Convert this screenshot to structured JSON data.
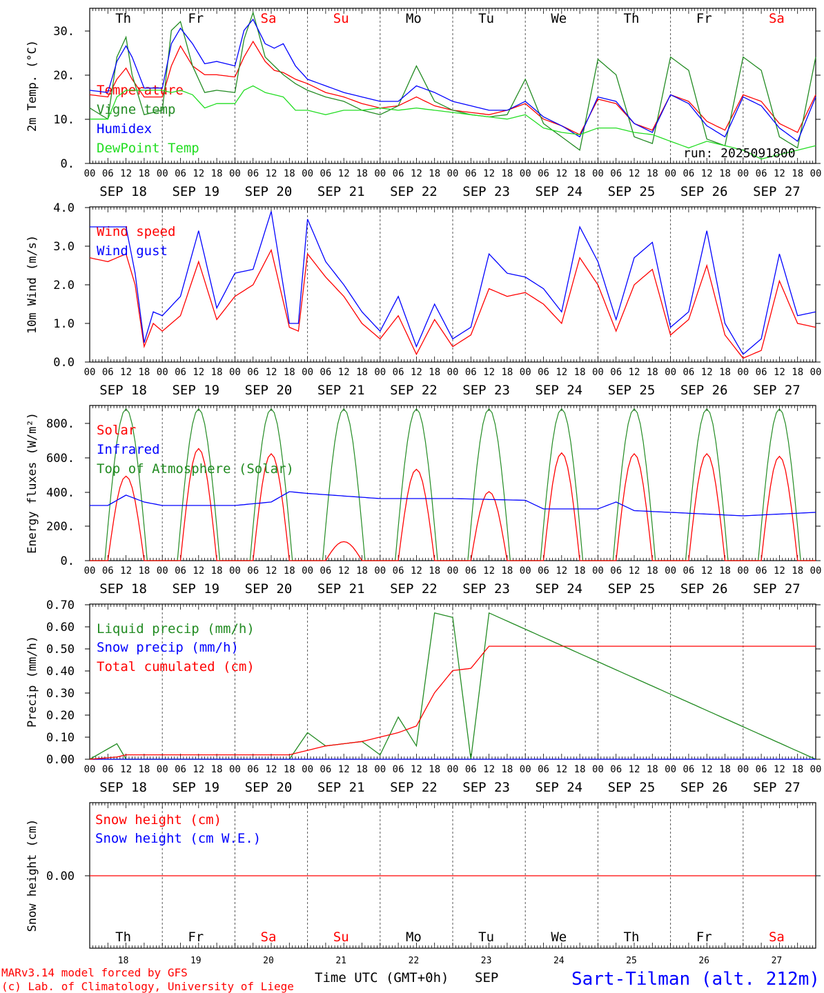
{
  "colors": {
    "red": "#ff0000",
    "green": "#228b22",
    "lightgreen": "#22dd22",
    "blue": "#0000ff",
    "axis": "#000000",
    "grid": "#555555"
  },
  "days": [
    {
      "abbr": "Th",
      "date": "SEP 18",
      "num": "18",
      "weekend": false
    },
    {
      "abbr": "Fr",
      "date": "SEP 19",
      "num": "19",
      "weekend": false
    },
    {
      "abbr": "Sa",
      "date": "SEP 20",
      "num": "20",
      "weekend": true
    },
    {
      "abbr": "Su",
      "date": "SEP 21",
      "num": "21",
      "weekend": true
    },
    {
      "abbr": "Mo",
      "date": "SEP 22",
      "num": "22",
      "weekend": false
    },
    {
      "abbr": "Tu",
      "date": "SEP 23",
      "num": "23",
      "weekend": false
    },
    {
      "abbr": "We",
      "date": "SEP 24",
      "num": "24",
      "weekend": false
    },
    {
      "abbr": "Th",
      "date": "SEP 25",
      "num": "25",
      "weekend": false
    },
    {
      "abbr": "Fr",
      "date": "SEP 26",
      "num": "26",
      "weekend": false
    },
    {
      "abbr": "Sa",
      "date": "SEP 27",
      "num": "27",
      "weekend": true
    }
  ],
  "hour_labels": [
    "00",
    "06",
    "12",
    "18"
  ],
  "hour_label_end": "00",
  "footer": {
    "credit_line1": "MARv3.14 model forced by GFS",
    "credit_line2": "(c) Lab. of Climatology, University of Liege",
    "xlabel": "Time UTC (GMT+0h)",
    "month": "SEP",
    "station": "Sart-Tilman (alt. 212m)"
  },
  "chart_data": [
    {
      "type": "line",
      "ylabel": "2m Temp. (°C)",
      "ylim": [
        0,
        35
      ],
      "yticks": [
        "0.",
        "10.",
        "20.",
        "30."
      ],
      "annotation": "run: 2025091800",
      "x_hours": [
        0,
        6,
        9,
        12,
        14,
        18,
        24,
        27,
        30,
        34,
        38,
        42,
        48,
        51,
        54,
        58,
        61,
        64,
        68,
        72,
        78,
        84,
        90,
        96,
        102,
        108,
        114,
        120,
        126,
        132,
        138,
        144,
        150,
        156,
        162,
        168,
        174,
        180,
        186,
        192,
        198,
        204,
        210,
        216,
        222,
        228,
        234,
        240
      ],
      "series": [
        {
          "name": "Temperature",
          "color": "#ff0000",
          "values": [
            15.5,
            15,
            19,
            21.5,
            19,
            15,
            15,
            22,
            26.5,
            22,
            20,
            20,
            19.5,
            24,
            27.5,
            23,
            21,
            20.5,
            19,
            18,
            16,
            15,
            13.5,
            12.5,
            13,
            15,
            13,
            12,
            11.5,
            11,
            12,
            13.5,
            10,
            8.5,
            6.5,
            14.5,
            13.5,
            9,
            7.5,
            15.5,
            14,
            9.5,
            7.5,
            15.5,
            14,
            9,
            7,
            15.5
          ]
        },
        {
          "name": "Vigne temp",
          "color": "#228b22",
          "values": [
            12.5,
            10,
            24,
            28.5,
            20,
            11,
            12,
            30,
            32,
            22,
            16,
            16.5,
            16,
            28,
            34,
            24,
            22,
            20,
            18,
            16.5,
            15,
            14,
            12,
            11,
            13,
            22,
            14,
            12,
            11,
            10.5,
            11,
            19,
            9,
            6,
            3,
            23.5,
            20,
            6,
            4.5,
            24,
            21,
            5.5,
            4,
            24,
            21,
            6,
            3.5,
            24
          ]
        },
        {
          "name": "Humidex",
          "color": "#0000ff",
          "values": [
            16.5,
            16,
            23,
            26.5,
            24,
            17,
            17,
            27,
            30.5,
            27,
            22.5,
            23,
            22,
            30,
            32.5,
            27,
            26,
            27,
            22,
            19,
            17.5,
            16,
            15,
            14,
            14,
            17.5,
            16,
            14,
            13,
            12,
            12,
            14,
            10.5,
            8.5,
            6,
            15,
            14,
            9,
            7,
            15.5,
            13.5,
            8.5,
            6,
            15,
            13,
            8,
            5,
            15
          ]
        },
        {
          "name": "DewPoint Temp",
          "color": "#22dd22",
          "values": [
            10,
            10,
            15,
            16.5,
            16.5,
            16.5,
            16.5,
            16,
            16.5,
            15.5,
            12.5,
            13.5,
            13.5,
            16.5,
            17.5,
            16,
            15.5,
            15,
            12,
            12,
            11,
            12,
            12,
            12.5,
            12,
            12.5,
            12,
            11.5,
            11,
            10.5,
            10,
            11,
            8,
            7,
            6.5,
            8,
            8,
            7,
            6.5,
            5,
            3.5,
            5,
            4,
            3,
            1,
            2,
            3,
            4
          ]
        }
      ]
    },
    {
      "type": "line",
      "ylabel": "10m Wind (m/s)",
      "ylim": [
        0,
        4
      ],
      "yticks": [
        "0.0",
        "1.0",
        "2.0",
        "3.0",
        "4.0"
      ],
      "x_hours": [
        0,
        6,
        12,
        15,
        18,
        21,
        24,
        30,
        36,
        42,
        48,
        54,
        60,
        66,
        69,
        72,
        78,
        84,
        90,
        96,
        102,
        108,
        114,
        120,
        126,
        132,
        138,
        144,
        150,
        156,
        162,
        168,
        174,
        180,
        186,
        192,
        198,
        204,
        210,
        216,
        222,
        228,
        234,
        240
      ],
      "series": [
        {
          "name": "Wind speed",
          "color": "#ff0000",
          "values": [
            2.7,
            2.6,
            2.8,
            2.0,
            0.4,
            1.0,
            0.8,
            1.2,
            2.6,
            1.1,
            1.7,
            2.0,
            2.9,
            0.9,
            0.8,
            2.8,
            2.2,
            1.7,
            1.0,
            0.6,
            1.2,
            0.2,
            1.1,
            0.4,
            0.7,
            1.9,
            1.7,
            1.8,
            1.5,
            1.0,
            2.7,
            2.0,
            0.8,
            2.0,
            2.4,
            0.7,
            1.1,
            2.5,
            0.7,
            0.1,
            0.3,
            2.1,
            1.0,
            0.9
          ]
        },
        {
          "name": "Wind gust",
          "color": "#0000ff",
          "values": [
            3.5,
            3.5,
            3.5,
            2.3,
            0.5,
            1.3,
            1.2,
            1.7,
            3.4,
            1.4,
            2.3,
            2.4,
            3.9,
            1.0,
            1.0,
            3.7,
            2.6,
            2.0,
            1.3,
            0.8,
            1.7,
            0.4,
            1.5,
            0.6,
            0.9,
            2.8,
            2.3,
            2.2,
            1.9,
            1.3,
            3.5,
            2.6,
            1.1,
            2.7,
            3.1,
            0.9,
            1.3,
            3.4,
            1.0,
            0.2,
            0.6,
            2.8,
            1.2,
            1.3
          ]
        }
      ]
    },
    {
      "type": "line",
      "ylabel": "Energy fluxes (W/m²)",
      "ylim": [
        0,
        900
      ],
      "yticks": [
        "0.",
        "200.",
        "400.",
        "600.",
        "800."
      ],
      "legend": [
        "Solar",
        "Infrared",
        "Top of Atmosphere (Solar)"
      ],
      "toa_peak": 880,
      "solar_peaks": [
        490,
        650,
        620,
        110,
        530,
        400,
        625,
        620,
        620,
        605
      ],
      "infrared": {
        "x_hours": [
          0,
          6,
          12,
          18,
          24,
          48,
          60,
          66,
          72,
          96,
          120,
          144,
          150,
          168,
          174,
          180,
          216,
          240
        ],
        "values": [
          320,
          320,
          380,
          340,
          320,
          320,
          340,
          400,
          390,
          360,
          360,
          350,
          300,
          300,
          340,
          290,
          260,
          280
        ]
      }
    },
    {
      "type": "line",
      "ylabel": "Precip (mm/h)",
      "ylim": [
        0,
        0.7
      ],
      "yticks": [
        "0.00",
        "0.10",
        "0.20",
        "0.30",
        "0.40",
        "0.50",
        "0.60",
        "0.70"
      ],
      "x_hours": [
        0,
        9,
        12,
        48,
        66,
        72,
        78,
        90,
        96,
        102,
        108,
        114,
        120,
        126,
        132,
        240
      ],
      "series": [
        {
          "name": "Liquid precip (mm/h)",
          "color": "#228b22",
          "values": [
            0,
            0.07,
            0.0,
            0.0,
            0.0,
            0.12,
            0.06,
            0.08,
            0.02,
            0.19,
            0.06,
            0.66,
            0.64,
            0.0,
            0.66,
            0.0
          ]
        },
        {
          "name": "Snow precip (mm/h)",
          "color": "#0000ff",
          "values": [
            0,
            0,
            0,
            0,
            0,
            0,
            0,
            0,
            0,
            0,
            0,
            0,
            0,
            0,
            0,
            0
          ]
        },
        {
          "name": "Total cumulated (cm)",
          "color": "#ff0000",
          "values": [
            0,
            0.01,
            0.02,
            0.02,
            0.02,
            0.04,
            0.06,
            0.08,
            0.1,
            0.12,
            0.15,
            0.3,
            0.4,
            0.41,
            0.51,
            0.51
          ]
        }
      ]
    },
    {
      "type": "line",
      "ylabel": "Snow height (cm)",
      "yticks": [
        "0.00"
      ],
      "series": [
        {
          "name": "Snow height (cm)",
          "color": "#ff0000",
          "values": [
            0,
            0
          ]
        },
        {
          "name": "Snow height (cm W.E.)",
          "color": "#0000ff",
          "values": [
            0,
            0
          ]
        }
      ]
    }
  ]
}
